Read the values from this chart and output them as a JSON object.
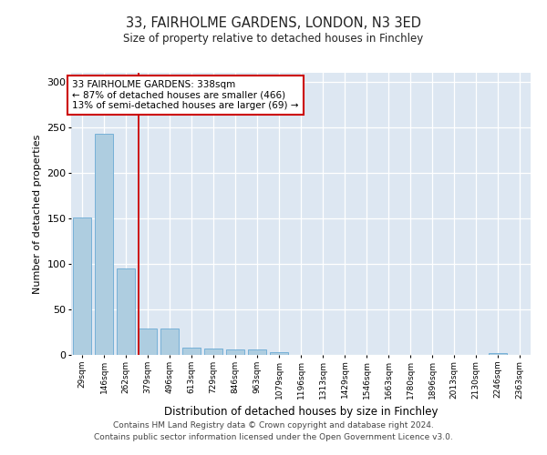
{
  "title1": "33, FAIRHOLME GARDENS, LONDON, N3 3ED",
  "title2": "Size of property relative to detached houses in Finchley",
  "xlabel": "Distribution of detached houses by size in Finchley",
  "ylabel": "Number of detached properties",
  "bin_labels": [
    "29sqm",
    "146sqm",
    "262sqm",
    "379sqm",
    "496sqm",
    "613sqm",
    "729sqm",
    "846sqm",
    "963sqm",
    "1079sqm",
    "1196sqm",
    "1313sqm",
    "1429sqm",
    "1546sqm",
    "1663sqm",
    "1780sqm",
    "1896sqm",
    "2013sqm",
    "2130sqm",
    "2246sqm",
    "2363sqm"
  ],
  "bar_values": [
    151,
    243,
    95,
    29,
    29,
    8,
    7,
    6,
    6,
    3,
    0,
    0,
    0,
    0,
    0,
    0,
    0,
    0,
    0,
    2,
    0
  ],
  "bar_color": "#aecde0",
  "bar_edge_color": "#6aaad4",
  "vline_x": 2.6,
  "vline_color": "#cc0000",
  "annotation_text": "33 FAIRHOLME GARDENS: 338sqm\n← 87% of detached houses are smaller (466)\n13% of semi-detached houses are larger (69) →",
  "annotation_box_color": "#ffffff",
  "annotation_box_edge": "#cc0000",
  "ylim": [
    0,
    310
  ],
  "yticks": [
    0,
    50,
    100,
    150,
    200,
    250,
    300
  ],
  "background_color": "#dde7f2",
  "footer1": "Contains HM Land Registry data © Crown copyright and database right 2024.",
  "footer2": "Contains public sector information licensed under the Open Government Licence v3.0."
}
